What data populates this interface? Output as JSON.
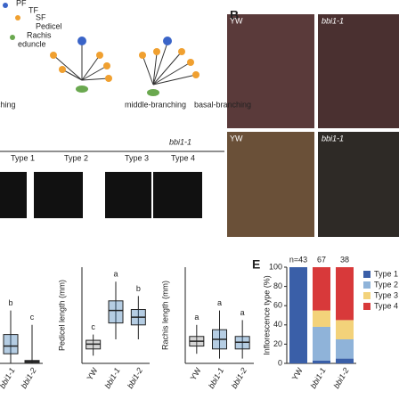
{
  "diagram": {
    "legend": [
      "PF",
      "TF",
      "SF",
      "Pedicel",
      "Rachis",
      "eduncle"
    ],
    "labels": [
      "ching",
      "middle-branching",
      "basal-branching"
    ]
  },
  "type_panel": {
    "genotype": "bbi1-1",
    "types": [
      "Type 1",
      "Type 2",
      "Type 3",
      "Type 4"
    ]
  },
  "panel_b": {
    "label": "B",
    "photos": [
      "YW",
      "bbi1-1",
      "YW",
      "bbi1-1"
    ]
  },
  "charts": [
    {
      "type": "box",
      "categories": [
        "bbi1-1",
        "bbi1-2"
      ],
      "letters": [
        "b",
        "c"
      ],
      "ylim": [
        0,
        100
      ],
      "boxes": [
        {
          "low": 0,
          "q1": 10,
          "median": 18,
          "q3": 30,
          "high": 55
        },
        {
          "low": 0,
          "q1": 1,
          "median": 2,
          "q3": 3,
          "high": 40
        }
      ]
    },
    {
      "type": "box",
      "ylabel": "Pedicel length (mm)",
      "categories": [
        "YW",
        "bbi1-1",
        "bbi1-2"
      ],
      "letters": [
        "c",
        "a",
        "b"
      ],
      "ylim": [
        0,
        100
      ],
      "boxes": [
        {
          "low": 8,
          "q1": 15,
          "median": 20,
          "q3": 24,
          "high": 30
        },
        {
          "low": 25,
          "q1": 42,
          "median": 55,
          "q3": 65,
          "high": 85
        },
        {
          "low": 25,
          "q1": 40,
          "median": 48,
          "q3": 56,
          "high": 70
        }
      ]
    },
    {
      "type": "box",
      "ylabel": "Rachis length (mm)",
      "categories": [
        "YW",
        "bbi1-1",
        "bbi1-2"
      ],
      "letters": [
        "a",
        "a",
        "a"
      ],
      "ylim": [
        0,
        100
      ],
      "boxes": [
        {
          "low": 10,
          "q1": 18,
          "median": 23,
          "q3": 28,
          "high": 40
        },
        {
          "low": 5,
          "q1": 15,
          "median": 25,
          "q3": 35,
          "high": 55
        },
        {
          "low": 5,
          "q1": 15,
          "median": 22,
          "q3": 28,
          "high": 45
        }
      ]
    },
    {
      "type": "stacked-bar",
      "label": "E",
      "ylabel": "Inflorescence type (%)",
      "categories": [
        "YW",
        "bbi1-1",
        "bbi1-2"
      ],
      "n_labels": [
        "n=43",
        "67",
        "38"
      ],
      "ylim": [
        0,
        100
      ],
      "yticks": [
        0,
        20,
        40,
        60,
        80,
        100
      ],
      "series": [
        {
          "name": "Type 1",
          "color": "#3a5fa8",
          "values": [
            100,
            3,
            5
          ]
        },
        {
          "name": "Type 2",
          "color": "#8fb3d9",
          "values": [
            0,
            35,
            20
          ]
        },
        {
          "name": "Type 3",
          "color": "#f3d27a",
          "values": [
            0,
            17,
            20
          ]
        },
        {
          "name": "Type 4",
          "color": "#d8393a",
          "values": [
            0,
            45,
            55
          ]
        }
      ]
    }
  ]
}
